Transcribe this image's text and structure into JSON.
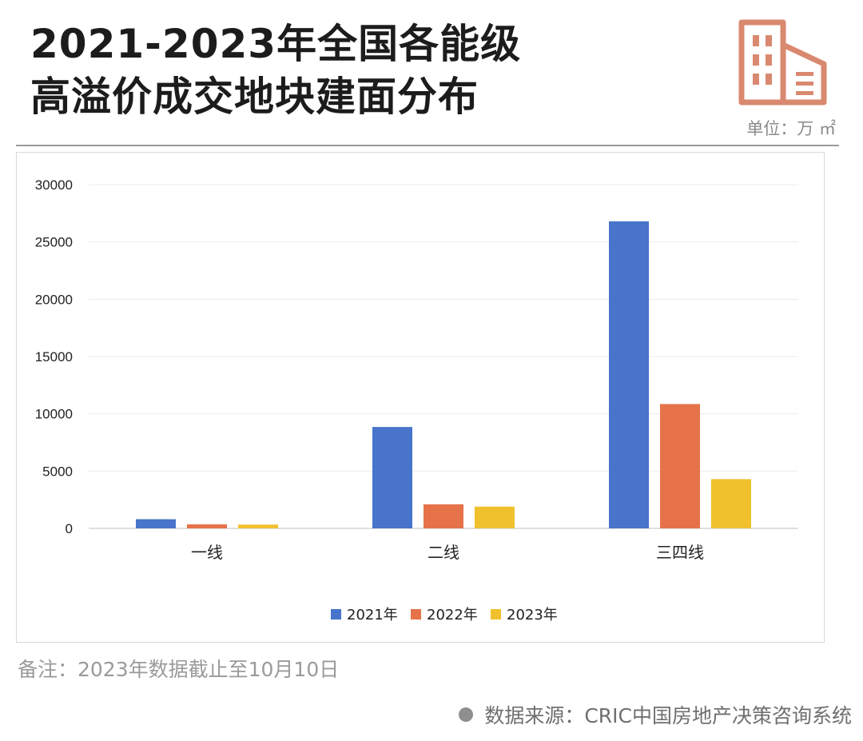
{
  "header": {
    "title_line1": "2021-2023年全国各能级",
    "title_line2": "高溢价成交地块建面分布",
    "unit": "单位：万 ㎡",
    "logo_icon": "building-icon",
    "logo_color": "#d9896f"
  },
  "footer": {
    "note": "备注：2023年数据截止至10月10日",
    "source": "数据来源：CRIC中国房地产决策咨询系统"
  },
  "chart_data": {
    "type": "bar",
    "categories": [
      "一线",
      "二线",
      "三四线"
    ],
    "series": [
      {
        "name": "2021年",
        "color": "#4874cb",
        "values": [
          800,
          8850,
          26800
        ]
      },
      {
        "name": "2022年",
        "color": "#e6724a",
        "values": [
          350,
          2100,
          10850
        ]
      },
      {
        "name": "2023年",
        "color": "#f1c02d",
        "values": [
          330,
          1900,
          4300
        ]
      }
    ],
    "title": "",
    "xlabel": "",
    "ylabel": "",
    "ylim": [
      0,
      30000
    ],
    "yticks": [
      0,
      5000,
      10000,
      15000,
      20000,
      25000,
      30000
    ],
    "grid": true,
    "legend": "bottom"
  }
}
